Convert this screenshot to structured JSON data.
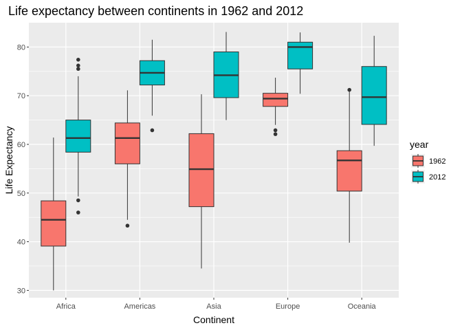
{
  "chart_data": {
    "type": "boxplot",
    "title": "Life expectancy between continents in 1962 and 2012",
    "xlabel": "Continent",
    "ylabel": "Life Expectancy",
    "ylim": [
      28.5,
      85
    ],
    "yticks": [
      30,
      40,
      50,
      60,
      70,
      80
    ],
    "categories": [
      "Africa",
      "Americas",
      "Asia",
      "Europe",
      "Oceania"
    ],
    "grid": true,
    "legend": {
      "title": "year",
      "placement": "right",
      "entries": [
        {
          "label": "1962",
          "color": "#F8766D"
        },
        {
          "label": "2012",
          "color": "#00BFC4"
        }
      ]
    },
    "series": [
      {
        "name": "1962",
        "color": "#F8766D",
        "boxes": [
          {
            "category": "Africa",
            "whisker_low": 30.0,
            "q1": 39.1,
            "median": 44.5,
            "q3": 48.4,
            "whisker_high": 61.4,
            "outliers": []
          },
          {
            "category": "Americas",
            "whisker_low": 44.5,
            "q1": 56.0,
            "median": 61.3,
            "q3": 64.4,
            "whisker_high": 71.1,
            "outliers": [
              43.3
            ]
          },
          {
            "category": "Asia",
            "whisker_low": 34.5,
            "q1": 47.2,
            "median": 54.9,
            "q3": 62.2,
            "whisker_high": 70.3,
            "outliers": []
          },
          {
            "category": "Europe",
            "whisker_low": 64.0,
            "q1": 67.8,
            "median": 69.4,
            "q3": 70.5,
            "whisker_high": 73.7,
            "outliers": [
              62.9,
              62.1
            ]
          },
          {
            "category": "Oceania",
            "whisker_low": 39.8,
            "q1": 50.4,
            "median": 56.7,
            "q3": 58.7,
            "whisker_high": 71.2,
            "outliers": [
              71.2
            ]
          }
        ]
      },
      {
        "name": "2012",
        "color": "#00BFC4",
        "boxes": [
          {
            "category": "Africa",
            "whisker_low": 49.3,
            "q1": 58.4,
            "median": 61.3,
            "q3": 65.0,
            "whisker_high": 74.0,
            "outliers": [
              77.4,
              76.2,
              75.5,
              48.5,
              46.0
            ]
          },
          {
            "category": "Americas",
            "whisker_low": 65.9,
            "q1": 72.2,
            "median": 74.7,
            "q3": 77.2,
            "whisker_high": 81.5,
            "outliers": [
              62.9
            ]
          },
          {
            "category": "Asia",
            "whisker_low": 65.0,
            "q1": 69.6,
            "median": 74.2,
            "q3": 79.0,
            "whisker_high": 83.1,
            "outliers": []
          },
          {
            "category": "Europe",
            "whisker_low": 70.4,
            "q1": 75.5,
            "median": 80.0,
            "q3": 81.0,
            "whisker_high": 83.0,
            "outliers": []
          },
          {
            "category": "Oceania",
            "whisker_low": 59.7,
            "q1": 64.1,
            "median": 69.7,
            "q3": 76.0,
            "whisker_high": 82.3,
            "outliers": []
          }
        ]
      }
    ]
  }
}
